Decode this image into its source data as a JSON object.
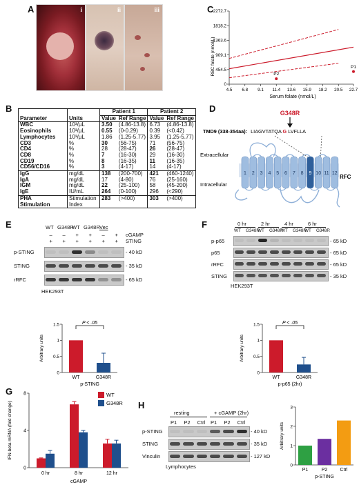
{
  "panels": {
    "A": "A",
    "B": "B",
    "C": "C",
    "D": "D",
    "E": "E",
    "F": "F",
    "G": "G",
    "H": "H"
  },
  "photos": {
    "labels": [
      "i",
      "ii",
      "iii"
    ]
  },
  "chart_C": {
    "type": "line",
    "ylabel": "RBC folate (nmol/L)",
    "xlabel": "Serum folate (nmol/L)",
    "yticks": [
      "0",
      "454.5",
      "909.1",
      "1363.6",
      "1818.2",
      "2272.7"
    ],
    "xticks": [
      "4.5",
      "6.8",
      "9.1",
      "11.4",
      "13.6",
      "15.9",
      "18.2",
      "20.5",
      "22.7"
    ],
    "ylim": [
      0,
      2272.7
    ],
    "series": [
      {
        "role": "mean",
        "x": [
          4.5,
          22.7
        ],
        "y": [
          480,
          1150
        ]
      },
      {
        "role": "upper",
        "x": [
          4.5,
          20.5
        ],
        "y": [
          800,
          1700
        ]
      },
      {
        "role": "lower",
        "x": [
          4.5,
          20.5
        ],
        "y": [
          200,
          650
        ]
      }
    ],
    "points": [
      {
        "label": "P1",
        "x": 22.7,
        "y": 390
      },
      {
        "label": "P2",
        "x": 11.4,
        "y": 170
      }
    ]
  },
  "table_B": {
    "headers": {
      "parameter": "Parameter",
      "units": "Units",
      "p1": "Patient 1",
      "p2": "Patient 2",
      "value": "Value",
      "ref": "Ref Range"
    },
    "groups": [
      [
        {
          "p": "WBC",
          "u": "10³/µL",
          "v1": "3.50",
          "r1": "(4.86-13.8)",
          "v2": "6.73",
          "r2": "(4.86-13.8)",
          "b1": true
        },
        {
          "p": "Eosinophils",
          "u": "10³/µL",
          "v1": "0.55",
          "r1": "(0-0.29)",
          "v2": "0.39",
          "r2": "(<0.42)",
          "b1": true
        },
        {
          "p": "Lymphocytes",
          "u": "10³/µL",
          "v1": "1.86",
          "r1": "(1.25-5.77)",
          "v2": "3.95",
          "r2": "(1.25-5.77)"
        },
        {
          "p": "CD3",
          "u": "%",
          "v1": "30",
          "r1": "(56-75)",
          "v2": "71",
          "r2": "(56-75)",
          "b1": true
        },
        {
          "p": "CD4",
          "u": "%",
          "v1": "28",
          "r1": "(28-47)",
          "v2": "26",
          "r2": "(28-47)",
          "b2": true
        },
        {
          "p": "CD8",
          "u": "%",
          "v1": "7",
          "r1": "(16-30)",
          "v2": "29",
          "r2": "(16-30)",
          "b1": true
        },
        {
          "p": "CD19",
          "u": "%",
          "v1": "8",
          "r1": "(16-35)",
          "v2": "11",
          "r2": "(16-35)",
          "b1": true,
          "b2": true
        },
        {
          "p": "CD56/CD16",
          "u": "%",
          "v1": "3",
          "r1": "(4-17)",
          "v2": "14",
          "r2": "(4-17)",
          "b1": true
        }
      ],
      [
        {
          "p": "IgG",
          "u": "mg/dL",
          "v1": "138",
          "r1": "(200-700)",
          "v2": "421",
          "r2": "(460-1240)",
          "b1": true,
          "b2": true
        },
        {
          "p": "IgA",
          "u": "mg/dL",
          "v1": "17",
          "r1": "(4-80)",
          "v2": "76",
          "r2": "(25-160)"
        },
        {
          "p": "IGM",
          "u": "mg/dL",
          "v1": "22",
          "r1": "(25-100)",
          "v2": "58",
          "r2": "(45-200)",
          "b1": true
        },
        {
          "p": "IgE",
          "u": "IU/mL",
          "v1": "264",
          "r1": "(0-100)",
          "v2": "296",
          "r2": "(<290)",
          "b1": true
        }
      ],
      [
        {
          "p": "PHA",
          "p2l": "Stimulation",
          "u": "Stimulation",
          "u2": "Index",
          "v1": "283",
          "r1": "(>400)",
          "v2": "303",
          "r2": "(>400)",
          "b1": true,
          "b2": true
        }
      ]
    ]
  },
  "diagram_D": {
    "mutation": "G348R",
    "tmd_label": "TMD9 (338-354aa):",
    "seq_pre": "LIAGVTATQA",
    "seq_mut": "G",
    "seq_post": "LVFLLA",
    "extracellular": "Extracellular",
    "intracellular": "Intracellular",
    "protein": "RFC",
    "helices": [
      "1",
      "2",
      "3",
      "4",
      "5",
      "6",
      "7",
      "8",
      "9",
      "10",
      "11",
      "12"
    ]
  },
  "blot_E": {
    "lanes": [
      "WT",
      "G348R",
      "WT",
      "G348R"
    ],
    "vec": "Vec",
    "cgamp_label": "cGAMP",
    "sting_label": "STING",
    "cgamp": [
      "–",
      "–",
      "+",
      "+",
      "–",
      "+"
    ],
    "sting": [
      "+",
      "+",
      "+",
      "+",
      "+",
      "+"
    ],
    "rows": [
      "p-STING",
      "STING",
      "rRFC"
    ],
    "sizes": [
      "- 40 kD",
      "- 35 kD",
      "- 65 kD"
    ],
    "cell": "HEK293T"
  },
  "chart_E": {
    "type": "bar",
    "categories": [
      "WT",
      "G348R"
    ],
    "values": [
      1.0,
      0.3
    ],
    "errors": [
      0,
      0.3
    ],
    "ylabel": "Arbitrary units",
    "xlabel": "p-STING",
    "yticks": [
      "0",
      "0.5",
      "1",
      "1.5"
    ],
    "ylim": [
      0,
      1.5
    ],
    "pvalue": "P < .05",
    "colors": [
      "#cc1b2b",
      "#1f4f8c"
    ]
  },
  "blot_F": {
    "times": [
      "0 hr",
      "2 hr",
      "4 hr",
      "6 hr"
    ],
    "lanes": [
      "WT",
      "G348R",
      "WT",
      "G348R",
      "WT",
      "G348R",
      "WT",
      "G348R"
    ],
    "rows": [
      "p-p65",
      "p65",
      "rRFC",
      "STING"
    ],
    "sizes": [
      "- 65 kD",
      "- 65 kD",
      "- 65 kD",
      "- 35 kD"
    ],
    "cell": "HEK293T"
  },
  "chart_F": {
    "type": "bar",
    "categories": [
      "WT",
      "G348R"
    ],
    "values": [
      1.0,
      0.25
    ],
    "errors": [
      0,
      0.22
    ],
    "ylabel": "Arbitrary units",
    "xlabel": "p-p65 (2hr)",
    "yticks": [
      "0",
      "0.5",
      "1",
      "1.5"
    ],
    "ylim": [
      0,
      1.5
    ],
    "pvalue": "P < .05",
    "colors": [
      "#cc1b2b",
      "#1f4f8c"
    ]
  },
  "chart_G": {
    "type": "bar",
    "categories": [
      "0 hr",
      "8 hr",
      "12 hr"
    ],
    "series": [
      {
        "name": "WT",
        "values": [
          1.0,
          6.8,
          2.6
        ],
        "errors": [
          0.05,
          0.3,
          0.45
        ]
      },
      {
        "name": "G348R",
        "values": [
          1.5,
          3.8,
          2.6
        ],
        "errors": [
          0.35,
          0.2,
          0.35
        ]
      }
    ],
    "ylabel": "IFN-beta mRNA (fold change)",
    "xlabel": "cGAMP",
    "yticks": [
      "0",
      "4",
      "8"
    ],
    "ylim": [
      0,
      8
    ],
    "colors": [
      "#cc1b2b",
      "#1f4f8c"
    ]
  },
  "blot_H": {
    "groups": [
      "resting",
      "+ cGAMP (2hr)"
    ],
    "lanes": [
      "P1",
      "P2",
      "Ctrl",
      "P1",
      "P2",
      "Ctrl"
    ],
    "rows": [
      "p-STING",
      "STING",
      "Vinculin"
    ],
    "sizes": [
      "- 40 kD",
      "- 35 kD",
      "- 127 kD"
    ],
    "cell": "Lymphocytes"
  },
  "chart_H": {
    "type": "bar",
    "categories": [
      "P1",
      "P2",
      "Ctrl"
    ],
    "values": [
      1.0,
      1.35,
      2.3
    ],
    "ylabel": "Arbitrary units",
    "xlabel": "p-STING",
    "yticks": [
      "0",
      "1",
      "2",
      "3"
    ],
    "ylim": [
      0,
      3
    ],
    "colors": [
      "#2ea043",
      "#6b2fa0",
      "#f39c12"
    ]
  }
}
